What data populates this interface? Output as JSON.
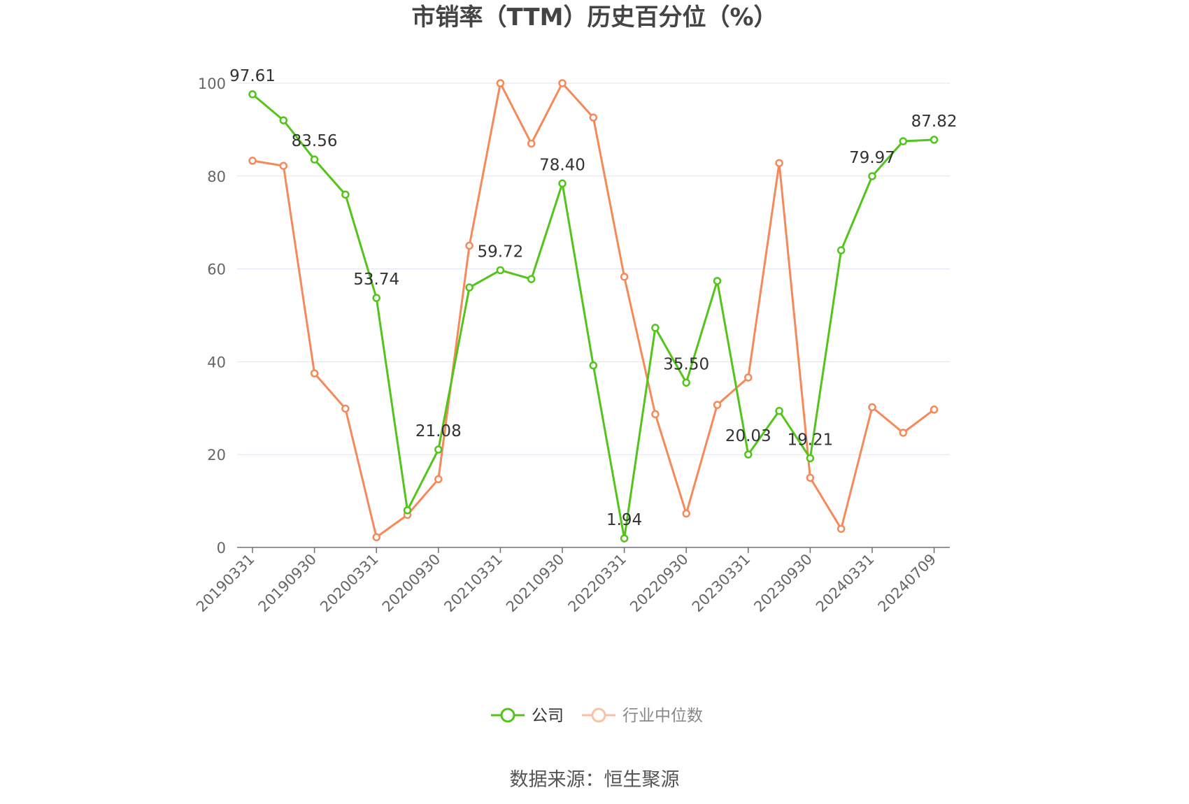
{
  "chart_data": {
    "type": "line",
    "title": "市销率（TTM）历史百分位（%）",
    "ylim": [
      0,
      100
    ],
    "yticks": [
      "0",
      "20",
      "40",
      "60",
      "80",
      "100"
    ],
    "x": [
      "20190331",
      "20190630",
      "20190930",
      "20191231",
      "20200331",
      "20200630",
      "20200930",
      "20201231",
      "20210331",
      "20210630",
      "20210930",
      "20211231",
      "20220331",
      "20220630",
      "20220930",
      "20221231",
      "20230331",
      "20230630",
      "20230930",
      "20231231",
      "20240331",
      "20240630",
      "20240709"
    ],
    "xtick_labels": [
      "20190331",
      "20190930",
      "20200331",
      "20200930",
      "20210331",
      "20210930",
      "20220331",
      "20220930",
      "20230331",
      "20230930",
      "20240331",
      "20240709"
    ],
    "series": [
      {
        "name": "公司",
        "color": "#52c41a",
        "values": [
          97.61,
          92.0,
          83.56,
          76.0,
          53.74,
          8.0,
          21.08,
          56.0,
          59.72,
          57.8,
          78.4,
          39.2,
          1.94,
          47.3,
          35.5,
          57.4,
          20.03,
          29.4,
          19.21,
          64.0,
          79.97,
          87.5,
          87.82
        ],
        "labels": [
          "97.61",
          "",
          "83.56",
          "",
          "53.74",
          "",
          "21.08",
          "",
          "59.72",
          "",
          "78.40",
          "",
          "1.94",
          "",
          "35.50",
          "",
          "20.03",
          "",
          "19.21",
          "",
          "79.97",
          "",
          "87.82"
        ]
      },
      {
        "name": "行业中位数",
        "color": "#f5895a",
        "values": [
          83.3,
          82.2,
          37.5,
          29.9,
          2.2,
          7.0,
          14.7,
          65.0,
          100.0,
          87.0,
          100.0,
          92.6,
          58.3,
          28.7,
          7.3,
          30.7,
          36.6,
          82.8,
          15.0,
          4.0,
          30.2,
          24.7,
          29.7
        ]
      }
    ],
    "grid": true,
    "legend": "bottom-center",
    "source": "数据来源：恒生聚源"
  }
}
